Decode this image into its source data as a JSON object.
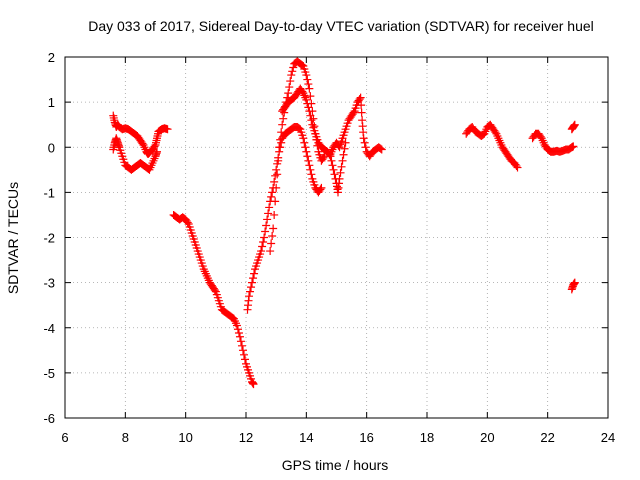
{
  "chart_data": {
    "type": "scatter",
    "title": "Day 033 of 2017, Sidereal Day-to-day VTEC variation (SDTVAR) for receiver huel",
    "xlabel": "GPS time / hours",
    "ylabel": "SDTVAR / TECUs",
    "xlim": [
      6,
      24
    ],
    "ylim": [
      -6,
      2
    ],
    "xticks": [
      6,
      8,
      10,
      12,
      14,
      16,
      18,
      20,
      22,
      24
    ],
    "yticks": [
      -6,
      -5,
      -4,
      -3,
      -2,
      -1,
      0,
      1,
      2
    ],
    "grid": true,
    "marker": "+",
    "color": "#ff0000",
    "series": [
      {
        "name": "early-trace-a",
        "points": [
          [
            7.6,
            0.7
          ],
          [
            7.65,
            0.55
          ],
          [
            7.7,
            0.45
          ],
          [
            7.75,
            0.5
          ],
          [
            7.8,
            0.45
          ],
          [
            7.9,
            0.4
          ],
          [
            8.0,
            0.42
          ],
          [
            8.1,
            0.4
          ],
          [
            8.2,
            0.35
          ],
          [
            8.3,
            0.3
          ],
          [
            8.4,
            0.25
          ],
          [
            8.5,
            0.15
          ],
          [
            8.6,
            0.05
          ],
          [
            8.7,
            -0.1
          ],
          [
            8.75,
            -0.15
          ],
          [
            8.8,
            -0.12
          ],
          [
            8.9,
            -0.05
          ],
          [
            9.0,
            0.05
          ],
          [
            9.05,
            0.2
          ],
          [
            9.1,
            0.35
          ],
          [
            9.2,
            0.4
          ],
          [
            9.3,
            0.42
          ],
          [
            9.4,
            0.4
          ]
        ]
      },
      {
        "name": "early-trace-b",
        "points": [
          [
            7.6,
            -0.05
          ],
          [
            7.65,
            0.1
          ],
          [
            7.7,
            0.2
          ],
          [
            7.75,
            0.1
          ],
          [
            7.8,
            0.0
          ],
          [
            7.9,
            -0.2
          ],
          [
            8.0,
            -0.4
          ],
          [
            8.1,
            -0.45
          ],
          [
            8.2,
            -0.5
          ],
          [
            8.3,
            -0.45
          ],
          [
            8.4,
            -0.4
          ],
          [
            8.5,
            -0.35
          ],
          [
            8.6,
            -0.4
          ],
          [
            8.7,
            -0.45
          ],
          [
            8.8,
            -0.5
          ],
          [
            8.9,
            -0.35
          ],
          [
            9.0,
            -0.2
          ],
          [
            9.05,
            -0.1
          ]
        ]
      },
      {
        "name": "descending-trace",
        "points": [
          [
            9.6,
            -1.5
          ],
          [
            9.7,
            -1.55
          ],
          [
            9.8,
            -1.6
          ],
          [
            9.9,
            -1.55
          ],
          [
            10.0,
            -1.6
          ],
          [
            10.1,
            -1.7
          ],
          [
            10.2,
            -1.9
          ],
          [
            10.3,
            -2.1
          ],
          [
            10.4,
            -2.3
          ],
          [
            10.5,
            -2.5
          ],
          [
            10.6,
            -2.7
          ],
          [
            10.7,
            -2.85
          ],
          [
            10.8,
            -3.0
          ],
          [
            10.9,
            -3.1
          ],
          [
            11.0,
            -3.2
          ],
          [
            11.1,
            -3.4
          ],
          [
            11.2,
            -3.6
          ],
          [
            11.3,
            -3.65
          ],
          [
            11.4,
            -3.7
          ],
          [
            11.5,
            -3.75
          ],
          [
            11.6,
            -3.8
          ],
          [
            11.7,
            -3.95
          ],
          [
            11.8,
            -4.2
          ],
          [
            11.9,
            -4.5
          ],
          [
            12.0,
            -4.8
          ],
          [
            12.1,
            -5.0
          ],
          [
            12.2,
            -5.2
          ],
          [
            12.25,
            -5.25
          ]
        ]
      },
      {
        "name": "rising-trace-a",
        "points": [
          [
            12.05,
            -3.6
          ],
          [
            12.1,
            -3.3
          ],
          [
            12.2,
            -3.0
          ],
          [
            12.3,
            -2.7
          ],
          [
            12.4,
            -2.5
          ],
          [
            12.5,
            -2.3
          ],
          [
            12.6,
            -2.0
          ],
          [
            12.7,
            -1.6
          ],
          [
            12.8,
            -1.2
          ],
          [
            12.9,
            -0.9
          ],
          [
            13.0,
            -0.5
          ],
          [
            13.1,
            -0.1
          ],
          [
            13.2,
            0.2
          ],
          [
            13.3,
            0.3
          ],
          [
            13.4,
            0.35
          ],
          [
            13.5,
            0.4
          ],
          [
            13.6,
            0.45
          ],
          [
            13.7,
            0.45
          ],
          [
            13.8,
            0.4
          ],
          [
            13.9,
            0.2
          ],
          [
            14.0,
            -0.1
          ],
          [
            14.1,
            -0.4
          ],
          [
            14.2,
            -0.7
          ],
          [
            14.3,
            -0.9
          ],
          [
            14.4,
            -1.0
          ],
          [
            14.5,
            -0.9
          ]
        ]
      },
      {
        "name": "rising-trace-b",
        "points": [
          [
            12.8,
            -2.3
          ],
          [
            12.9,
            -1.8
          ],
          [
            13.0,
            -0.9
          ],
          [
            13.1,
            0.0
          ],
          [
            13.2,
            0.5
          ],
          [
            13.3,
            0.9
          ],
          [
            13.4,
            1.2
          ],
          [
            13.5,
            1.6
          ],
          [
            13.6,
            1.85
          ],
          [
            13.7,
            1.9
          ],
          [
            13.8,
            1.85
          ],
          [
            13.9,
            1.8
          ],
          [
            14.0,
            1.6
          ],
          [
            14.1,
            1.3
          ],
          [
            14.2,
            0.8
          ],
          [
            14.3,
            0.3
          ],
          [
            14.4,
            -0.1
          ],
          [
            14.5,
            -0.3
          ],
          [
            14.6,
            -0.2
          ]
        ]
      },
      {
        "name": "rising-trace-c",
        "points": [
          [
            13.2,
            0.8
          ],
          [
            13.3,
            0.9
          ],
          [
            13.4,
            1.0
          ],
          [
            13.5,
            1.05
          ],
          [
            13.6,
            1.1
          ],
          [
            13.7,
            1.2
          ],
          [
            13.8,
            1.3
          ],
          [
            13.9,
            1.2
          ],
          [
            14.0,
            1.05
          ],
          [
            14.1,
            0.8
          ],
          [
            14.2,
            0.5
          ],
          [
            14.3,
            0.3
          ],
          [
            14.4,
            0.1
          ],
          [
            14.5,
            0.0
          ],
          [
            14.6,
            -0.05
          ],
          [
            14.7,
            -0.1
          ],
          [
            14.8,
            -0.2
          ],
          [
            14.9,
            -0.5
          ],
          [
            15.0,
            -0.8
          ],
          [
            15.05,
            -1.0
          ],
          [
            15.1,
            -0.7
          ],
          [
            15.2,
            -0.3
          ],
          [
            15.3,
            0.1
          ]
        ]
      },
      {
        "name": "mid-trace",
        "points": [
          [
            14.8,
            -0.15
          ],
          [
            14.9,
            0.0
          ],
          [
            15.0,
            0.1
          ],
          [
            15.1,
            0.0
          ],
          [
            15.2,
            0.2
          ],
          [
            15.3,
            0.4
          ],
          [
            15.4,
            0.6
          ],
          [
            15.5,
            0.7
          ],
          [
            15.6,
            0.8
          ],
          [
            15.7,
            1.0
          ],
          [
            15.8,
            1.1
          ],
          [
            15.85,
            0.6
          ],
          [
            15.9,
            0.2
          ],
          [
            16.0,
            -0.1
          ],
          [
            16.1,
            -0.2
          ],
          [
            16.2,
            -0.1
          ],
          [
            16.3,
            -0.05
          ],
          [
            16.4,
            0.0
          ],
          [
            16.5,
            -0.05
          ]
        ]
      },
      {
        "name": "evening-trace",
        "points": [
          [
            19.3,
            0.3
          ],
          [
            19.4,
            0.4
          ],
          [
            19.5,
            0.45
          ],
          [
            19.6,
            0.35
          ],
          [
            19.7,
            0.3
          ],
          [
            19.8,
            0.25
          ],
          [
            19.9,
            0.3
          ],
          [
            20.0,
            0.45
          ],
          [
            20.1,
            0.5
          ],
          [
            20.2,
            0.4
          ],
          [
            20.3,
            0.3
          ],
          [
            20.4,
            0.15
          ],
          [
            20.5,
            0.0
          ],
          [
            20.6,
            -0.1
          ],
          [
            20.7,
            -0.2
          ],
          [
            20.8,
            -0.3
          ],
          [
            20.9,
            -0.35
          ],
          [
            21.0,
            -0.45
          ]
        ]
      },
      {
        "name": "late-trace",
        "points": [
          [
            21.5,
            0.2
          ],
          [
            21.6,
            0.3
          ],
          [
            21.7,
            0.3
          ],
          [
            21.8,
            0.2
          ],
          [
            21.9,
            0.05
          ],
          [
            22.0,
            -0.05
          ],
          [
            22.1,
            -0.1
          ],
          [
            22.2,
            -0.1
          ],
          [
            22.3,
            -0.08
          ],
          [
            22.4,
            -0.1
          ],
          [
            22.5,
            -0.08
          ],
          [
            22.6,
            -0.05
          ],
          [
            22.7,
            -0.05
          ],
          [
            22.8,
            0.0
          ],
          [
            22.85,
            0.02
          ]
        ]
      },
      {
        "name": "late-high",
        "points": [
          [
            22.8,
            0.4
          ],
          [
            22.85,
            0.45
          ],
          [
            22.9,
            0.5
          ]
        ]
      },
      {
        "name": "late-low",
        "points": [
          [
            22.8,
            -3.15
          ],
          [
            22.85,
            -3.05
          ],
          [
            22.9,
            -3.0
          ]
        ]
      }
    ]
  }
}
